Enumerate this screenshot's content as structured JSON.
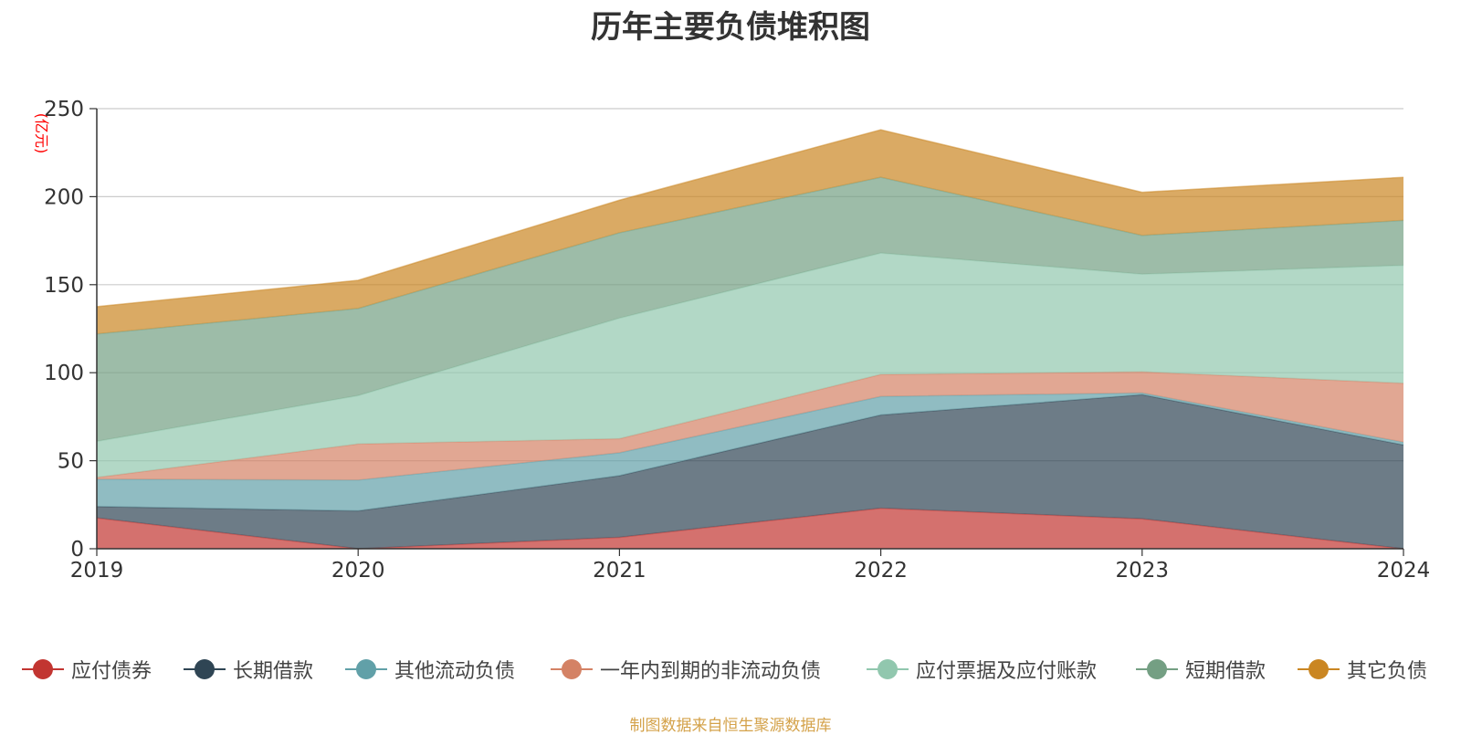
{
  "chart_data": {
    "type": "area",
    "stacked": true,
    "title": "历年主要负债堆积图",
    "ylabel": "(亿元)",
    "xlabel": "",
    "ylim": [
      0,
      250
    ],
    "yticks": [
      0,
      50,
      100,
      150,
      200,
      250
    ],
    "categories": [
      "2019",
      "2020",
      "2021",
      "2022",
      "2023",
      "2024"
    ],
    "series": [
      {
        "name": "应付债券",
        "color": "#c23531",
        "values": [
          17.5,
          0,
          6.5,
          23,
          17,
          0
        ]
      },
      {
        "name": "长期借款",
        "color": "#2f4554",
        "values": [
          6.5,
          21.5,
          35,
          53,
          70.5,
          59
        ]
      },
      {
        "name": "其他流动负债",
        "color": "#61a0a8",
        "values": [
          15.5,
          17.5,
          13,
          10.5,
          1,
          1.5
        ]
      },
      {
        "name": "一年内到期的非流动负债",
        "color": "#d48265",
        "values": [
          1,
          20.5,
          8,
          12.5,
          12,
          33.5
        ]
      },
      {
        "name": "应付票据及应付账款",
        "color": "#91c7ae",
        "values": [
          20.5,
          27.5,
          68.5,
          69,
          55.5,
          67
        ]
      },
      {
        "name": "短期借款",
        "color": "#749f83",
        "values": [
          61,
          49.5,
          48.5,
          43,
          22,
          25.5
        ]
      },
      {
        "name": "其它负债",
        "color": "#ca8622",
        "values": [
          15.5,
          16,
          18.5,
          27,
          24.5,
          24.5
        ]
      }
    ],
    "legend_position": "bottom",
    "grid": true
  },
  "source_note": "制图数据来自恒生聚源数据库"
}
